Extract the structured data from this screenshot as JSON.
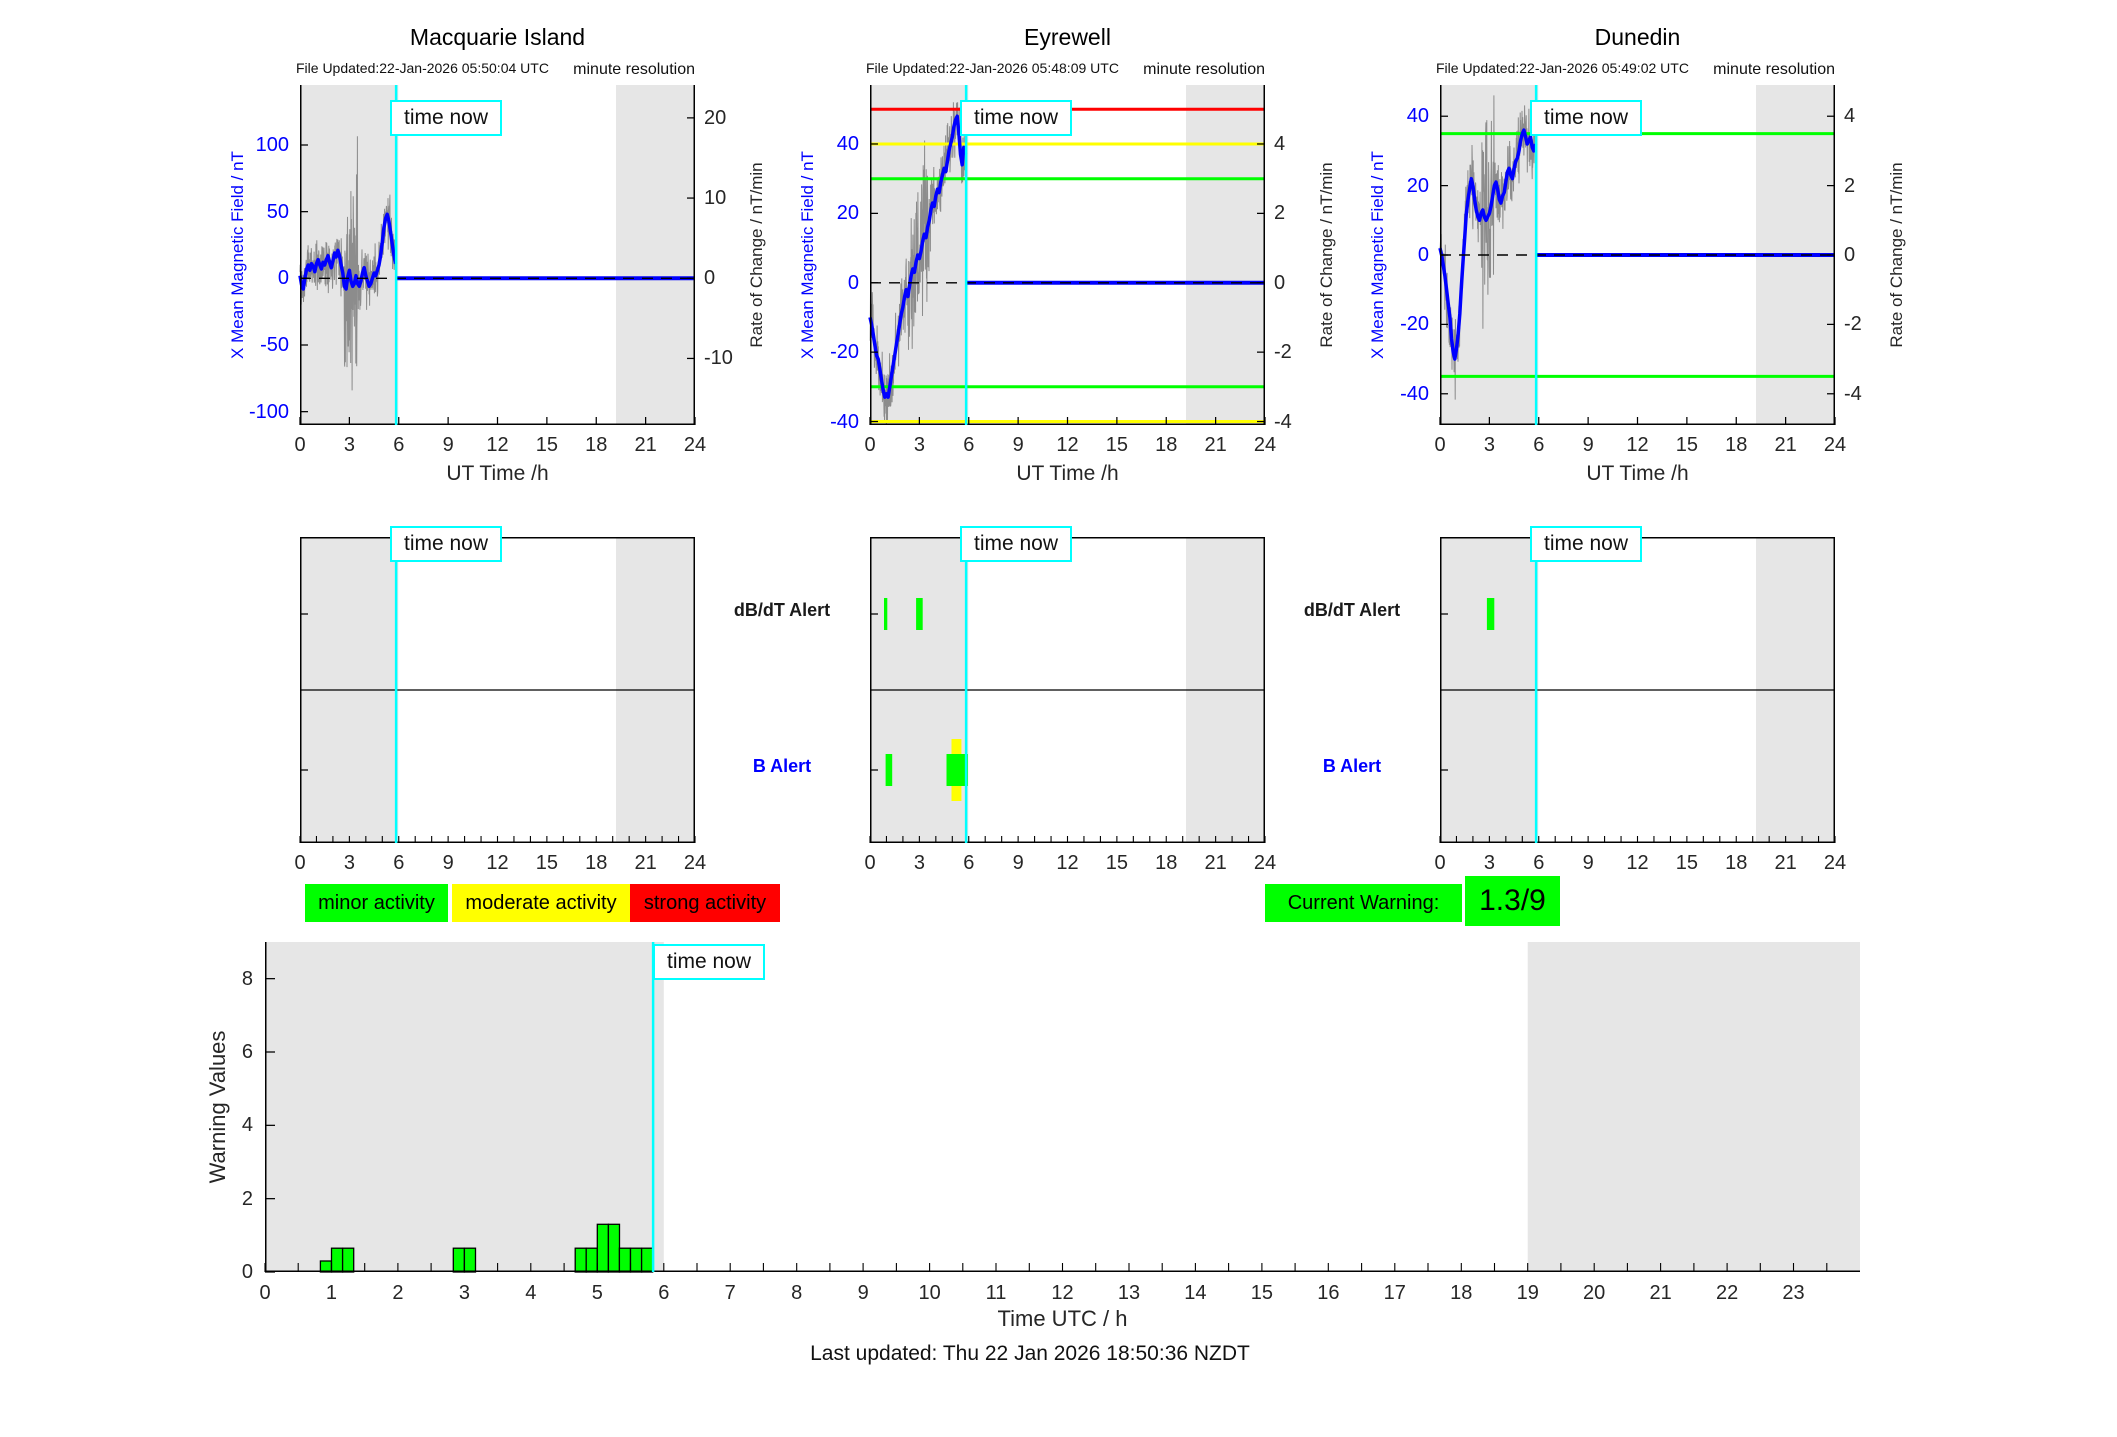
{
  "ui": {
    "time_now_label": "time now",
    "legend": [
      {
        "label": "minor activity",
        "color": "#00ff00"
      },
      {
        "label": "moderate activity",
        "color": "#ffff00"
      },
      {
        "label": "strong activity",
        "color": "#ff0000"
      }
    ],
    "current_warning": {
      "label": "Current Warning:",
      "value": "1.3/9",
      "color": "#00ff00"
    },
    "alert_row_labels": [
      {
        "text": "dB/dT Alert",
        "color": "#1a1a1a"
      },
      {
        "text": "B Alert",
        "color": "#0000ff"
      }
    ],
    "footer": "Last updated: Thu 22 Jan 2026 18:50:36 NZDT",
    "colors": {
      "time_now": "#00ffff",
      "night_shading": "#e6e6e6",
      "mean_field": "#0000ff",
      "raw_trace": "#8c8c8c"
    }
  },
  "chart_data": {
    "magnetometers": [
      {
        "type": "line",
        "title": "Macquarie Island",
        "file_updated": "File Updated:22-Jan-2026 05:50:04 UTC",
        "resolution_note": "minute resolution",
        "xlabel": "UT Time /h",
        "ylabel_left": "X Mean Magnetic Field / nT",
        "ylabel_right": "Rate of Change / nT/min",
        "xlim": [
          0,
          24
        ],
        "xticks": [
          0,
          3,
          6,
          9,
          12,
          15,
          18,
          21,
          24
        ],
        "ylim_left": [
          -110,
          145
        ],
        "yticks_left": [
          -100,
          -50,
          0,
          50,
          100
        ],
        "ylim_right": [
          -18.3,
          24.1
        ],
        "yticks_right": [
          -10,
          0,
          10,
          20
        ],
        "night_shading": [
          [
            0,
            5.97
          ],
          [
            19.2,
            24
          ]
        ],
        "time_now": 5.84,
        "thresholds": [],
        "series": {
          "mean_field": {
            "color": "#0000ff",
            "x_start": 0,
            "x_step": 0.1,
            "values": [
              2,
              -5,
              -8,
              0,
              7,
              10,
              6,
              11,
              9,
              5,
              11,
              14,
              10,
              7,
              12,
              10,
              14,
              17,
              12,
              8,
              13,
              19,
              16,
              21,
              17,
              10,
              4,
              -6,
              -8,
              1,
              6,
              -2,
              -6,
              -4,
              2,
              -4,
              -6,
              -2,
              4,
              8,
              2,
              -2,
              -6,
              -4,
              0,
              4,
              2,
              6,
              10,
              17,
              27,
              38,
              45,
              48,
              43,
              35,
              26,
              18,
              11
            ]
          },
          "raw": {
            "color": "#8c8c8c",
            "seed": 11,
            "amp": 20,
            "spike_window": [
              2.7,
              3.5
            ],
            "spike_mult": 4.4,
            "clip": [
              -106,
              112
            ]
          },
          "forecast_flat": {
            "y": 0
          },
          "zero_line": {
            "y": 0,
            "style": "dashed",
            "color": "#000000"
          }
        }
      },
      {
        "type": "line",
        "title": "Eyrewell",
        "file_updated": "File Updated:22-Jan-2026 05:48:09 UTC",
        "resolution_note": "minute resolution",
        "xlabel": "UT Time /h",
        "ylabel_left": "X Mean Magnetic Field / nT",
        "ylabel_right": "Rate of Change / nT/min",
        "xlim": [
          0,
          24
        ],
        "xticks": [
          0,
          3,
          6,
          9,
          12,
          15,
          18,
          21,
          24
        ],
        "ylim_left": [
          -41,
          57
        ],
        "yticks_left": [
          -40,
          -20,
          0,
          20,
          40
        ],
        "ylim_right": [
          -4.1,
          5.7
        ],
        "yticks_right": [
          -4,
          -2,
          0,
          2,
          4
        ],
        "night_shading": [
          [
            0,
            5.97
          ],
          [
            19.2,
            24
          ]
        ],
        "time_now": 5.84,
        "thresholds": [
          {
            "y": 50,
            "color": "#ff0000",
            "label": "strong"
          },
          {
            "y": 40,
            "color": "#ffff00",
            "label": "moderate"
          },
          {
            "y": 30,
            "color": "#00ff00",
            "label": "minor"
          },
          {
            "y": -30,
            "color": "#00ff00",
            "label": "minor"
          },
          {
            "y": -40,
            "color": "#ffff00",
            "label": "moderate"
          }
        ],
        "series": {
          "mean_field": {
            "color": "#0000ff",
            "x_start": 0,
            "x_step": 0.1,
            "values": [
              -10,
              -12,
              -15,
              -18,
              -21,
              -22,
              -25,
              -28,
              -31,
              -33,
              -32,
              -33,
              -30,
              -27,
              -24,
              -21,
              -18,
              -15,
              -12,
              -9,
              -7,
              -4,
              -2,
              -4,
              -1,
              2,
              4,
              3,
              6,
              8,
              7,
              9,
              12,
              14,
              13,
              16,
              18,
              21,
              23,
              22,
              25,
              27,
              26,
              29,
              31,
              33,
              32,
              35,
              38,
              40,
              42,
              45,
              47,
              48,
              43,
              37,
              34,
              39,
              37
            ]
          },
          "raw": {
            "color": "#8c8c8c",
            "seed": 23,
            "amp": 10,
            "spike_window": [
              2.3,
              3.7
            ],
            "spike_mult": 2.3,
            "clip": [
              -41,
              52
            ]
          },
          "forecast_flat": {
            "y": 0
          },
          "zero_line": {
            "y": 0,
            "style": "dashed",
            "color": "#000000"
          }
        }
      },
      {
        "type": "line",
        "title": "Dunedin",
        "file_updated": "File Updated:22-Jan-2026 05:49:02 UTC",
        "resolution_note": "minute resolution",
        "xlabel": "UT Time /h",
        "ylabel_left": "X Mean Magnetic Field / nT",
        "ylabel_right": "Rate of Change / nT/min",
        "xlim": [
          0,
          24
        ],
        "xticks": [
          0,
          3,
          6,
          9,
          12,
          15,
          18,
          21,
          24
        ],
        "ylim_left": [
          -49,
          49
        ],
        "yticks_left": [
          -40,
          -20,
          0,
          20,
          40
        ],
        "ylim_right": [
          -4.9,
          4.9
        ],
        "yticks_right": [
          -4,
          -2,
          0,
          2,
          4
        ],
        "night_shading": [
          [
            0,
            5.97
          ],
          [
            19.2,
            24
          ]
        ],
        "time_now": 5.84,
        "thresholds": [
          {
            "y": 35,
            "color": "#00ff00",
            "label": "minor"
          },
          {
            "y": -35,
            "color": "#00ff00",
            "label": "minor"
          }
        ],
        "series": {
          "mean_field": {
            "color": "#0000ff",
            "x_start": 0,
            "x_step": 0.1,
            "values": [
              2,
              0,
              -3,
              -6,
              -10,
              -14,
              -18,
              -24,
              -28,
              -30,
              -27,
              -23,
              -17,
              -9,
              -2,
              5,
              12,
              16,
              19,
              22,
              20,
              16,
              13,
              11,
              10,
              12,
              13,
              11,
              10,
              11,
              12,
              14,
              17,
              20,
              21,
              19,
              16,
              15,
              17,
              18,
              21,
              24,
              25,
              23,
              22,
              25,
              27,
              28,
              30,
              33,
              35,
              36,
              34,
              32,
              33,
              34,
              31,
              30,
              32
            ]
          },
          "raw": {
            "color": "#8c8c8c",
            "seed": 37,
            "amp": 10,
            "spike_window": [
              2.5,
              3.3
            ],
            "spike_mult": 2.8,
            "clip": [
              -48,
              46
            ]
          },
          "forecast_flat": {
            "y": 0
          },
          "zero_line": {
            "y": 0,
            "style": "dashed",
            "color": "#000000"
          }
        }
      }
    ],
    "alert_panels": [
      {
        "type": "timeline",
        "station": "Macquarie Island",
        "rows": [
          "dB/dT Alert",
          "B Alert"
        ],
        "xlim": [
          0,
          24
        ],
        "xticks_labeled": [
          0,
          3,
          6,
          9,
          12,
          15,
          18,
          21,
          24
        ],
        "tick_every": 1,
        "night_shading": [
          [
            0,
            5.97
          ],
          [
            19.2,
            24
          ]
        ],
        "time_now": 5.84,
        "bars": []
      },
      {
        "type": "timeline",
        "station": "Eyrewell",
        "rows": [
          "dB/dT Alert",
          "B Alert"
        ],
        "xlim": [
          0,
          24
        ],
        "xticks_labeled": [
          0,
          3,
          6,
          9,
          12,
          15,
          18,
          21,
          24
        ],
        "tick_every": 1,
        "night_shading": [
          [
            0,
            5.97
          ],
          [
            19.2,
            24
          ]
        ],
        "time_now": 5.84,
        "bars": [
          {
            "row": 0,
            "start": 0.85,
            "end": 1.05,
            "color": "#00ff00",
            "severity": "minor"
          },
          {
            "row": 0,
            "start": 2.8,
            "end": 3.2,
            "color": "#00ff00",
            "severity": "minor"
          },
          {
            "row": 1,
            "start": 0.95,
            "end": 1.35,
            "color": "#00ff00",
            "severity": "minor"
          },
          {
            "row": 1,
            "start": 4.95,
            "end": 5.55,
            "color": "#ffff00",
            "severity": "moderate",
            "tall": true
          },
          {
            "row": 1,
            "start": 4.65,
            "end": 5.95,
            "color": "#00ff00",
            "severity": "minor"
          }
        ]
      },
      {
        "type": "timeline",
        "station": "Dunedin",
        "rows": [
          "dB/dT Alert",
          "B Alert"
        ],
        "xlim": [
          0,
          24
        ],
        "xticks_labeled": [
          0,
          3,
          6,
          9,
          12,
          15,
          18,
          21,
          24
        ],
        "tick_every": 1,
        "night_shading": [
          [
            0,
            5.97
          ],
          [
            19.2,
            24
          ]
        ],
        "time_now": 5.84,
        "bars": [
          {
            "row": 0,
            "start": 2.85,
            "end": 3.3,
            "color": "#00ff00",
            "severity": "minor"
          }
        ]
      }
    ],
    "warning_chart": {
      "type": "bar",
      "ylabel": "Warning Values",
      "xlabel": "Time UTC / h",
      "xlim": [
        0,
        24
      ],
      "ylim": [
        0,
        9
      ],
      "yticks": [
        0,
        2,
        4,
        6,
        8
      ],
      "xtick_labels": [
        0,
        1,
        2,
        3,
        4,
        5,
        6,
        7,
        8,
        9,
        10,
        11,
        12,
        13,
        14,
        15,
        16,
        17,
        18,
        19,
        20,
        21,
        22,
        23
      ],
      "bar_width": 0.1667,
      "bar_color": "#00ff00",
      "night_shading": [
        [
          0,
          6
        ],
        [
          19,
          24
        ]
      ],
      "time_now": 5.84,
      "bars": [
        {
          "x": 0.833,
          "value": 0.3
        },
        {
          "x": 1.0,
          "value": 0.65
        },
        {
          "x": 1.167,
          "value": 0.65
        },
        {
          "x": 2.833,
          "value": 0.65
        },
        {
          "x": 3.0,
          "value": 0.65
        },
        {
          "x": 4.667,
          "value": 0.65
        },
        {
          "x": 4.833,
          "value": 0.65
        },
        {
          "x": 5.0,
          "value": 1.3
        },
        {
          "x": 5.167,
          "value": 1.3
        },
        {
          "x": 5.333,
          "value": 0.65
        },
        {
          "x": 5.5,
          "value": 0.65
        },
        {
          "x": 5.667,
          "value": 0.65
        }
      ]
    }
  }
}
